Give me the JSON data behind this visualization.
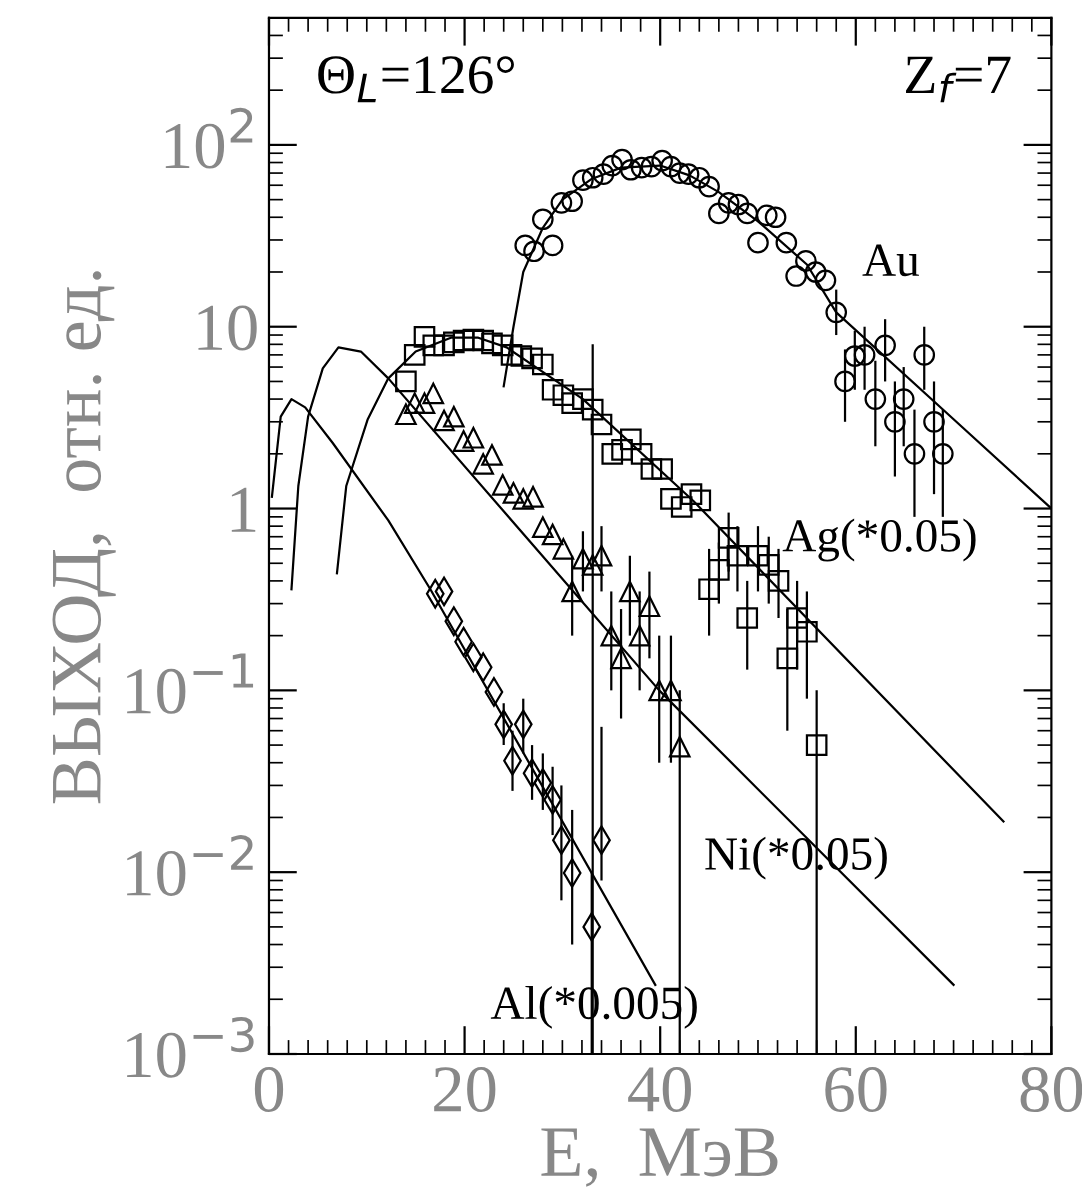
{
  "chart_data": {
    "type": "scatter",
    "xlabel": "E,  МэВ",
    "ylabel": "ВЫХОД,  отн. ед.",
    "log": "y",
    "grid": false,
    "xlim": [
      0,
      80
    ],
    "xticks": [
      0,
      20,
      40,
      60,
      80
    ],
    "ylim": [
      0.001,
      500
    ],
    "yticks": [
      {
        "value": 0.001,
        "label": "10$^{−3}$"
      },
      {
        "value": 0.01,
        "label": "10$^{−2}$"
      },
      {
        "value": 0.1,
        "label": "10$^{−1}$"
      },
      1,
      10,
      {
        "value": 100,
        "label": "10$^{2}$"
      }
    ],
    "annotations": [
      "Θ$_{L}$=126°",
      "Z$_{f}$=7"
    ],
    "series": [
      {
        "name": "Au",
        "marker": "circle",
        "color": "#000000",
        "x": [
          26.2,
          27.1,
          28.0,
          29.0,
          29.9,
          31.0,
          32.1,
          33.1,
          34.2,
          35.1,
          36.1,
          37.0,
          38.1,
          39.1,
          40.2,
          41.1,
          42.0,
          42.9,
          44.0,
          45.0,
          46.0,
          47.0,
          48.0,
          48.9,
          50.0,
          50.9,
          51.8,
          52.9,
          53.9,
          54.9,
          55.9,
          56.9,
          58.0,
          58.9,
          59.9,
          60.9,
          62.0,
          63.0,
          64.0,
          64.9,
          66.0,
          67.0,
          68.0,
          68.9
        ],
        "values": [
          28,
          26,
          39,
          28,
          48,
          49,
          64,
          66,
          69,
          77,
          83,
          73,
          75,
          76,
          82,
          76,
          70,
          69,
          66,
          59,
          42,
          48,
          47,
          42,
          29,
          41,
          40,
          29,
          19,
          23,
          20,
          18,
          12,
          5.0,
          6.9,
          7.0,
          4.0,
          7.9,
          3.0,
          4.0,
          2.0,
          7.0,
          3.0,
          2.0
        ],
        "errors": [
          null,
          null,
          null,
          null,
          null,
          null,
          null,
          null,
          null,
          null,
          null,
          null,
          null,
          null,
          null,
          null,
          null,
          null,
          null,
          null,
          null,
          null,
          null,
          null,
          null,
          null,
          null,
          null,
          null,
          null,
          null,
          null,
          [
            9,
            16
          ],
          [
            3.0,
            7.5
          ],
          [
            4.5,
            9.5
          ],
          [
            4.5,
            10
          ],
          [
            2.2,
            6.5
          ],
          [
            5,
            11
          ],
          [
            1.5,
            5
          ],
          [
            2.2,
            6
          ],
          [
            0.9,
            3.5
          ],
          [
            4.5,
            10
          ],
          [
            1.2,
            5
          ],
          [
            0.9,
            3.5
          ]
        ]
      },
      {
        "name": "Ag(*0.05)",
        "marker": "square",
        "color": "#000000",
        "x": [
          14.0,
          14.9,
          15.9,
          16.8,
          17.9,
          18.9,
          19.9,
          20.9,
          21.9,
          22.8,
          23.9,
          24.8,
          25.8,
          26.9,
          28.0,
          29.0,
          30.1,
          31.0,
          32.1,
          33.1,
          34.0,
          35.1,
          36.1,
          37.0,
          38.1,
          39.1,
          40.2,
          41.1,
          42.2,
          43.2,
          44.1,
          45.0,
          46.0,
          47.0,
          47.9,
          48.9,
          50.0,
          51.1,
          52.1,
          53.0,
          54.0,
          55.0,
          56.0
        ],
        "values": [
          5.0,
          7.0,
          8.8,
          7.9,
          7.9,
          8.2,
          8.4,
          8.5,
          8.4,
          8.1,
          7.9,
          7.0,
          6.9,
          6.7,
          6.2,
          4.5,
          4.2,
          3.8,
          4.0,
          3.5,
          2.9,
          2.0,
          2.1,
          2.4,
          2.0,
          1.65,
          1.65,
          1.13,
          1.02,
          1.2,
          1.11,
          0.36,
          0.46,
          0.69,
          0.55,
          0.25,
          0.55,
          0.49,
          0.4,
          0.15,
          0.25,
          0.21,
          0.05
        ],
        "errors": [
          null,
          null,
          null,
          null,
          null,
          null,
          null,
          null,
          null,
          null,
          null,
          null,
          null,
          null,
          null,
          null,
          null,
          null,
          null,
          null,
          null,
          null,
          null,
          null,
          null,
          null,
          null,
          null,
          null,
          null,
          null,
          [
            0.2,
            0.6
          ],
          [
            0.3,
            0.65
          ],
          [
            0.45,
            0.95
          ],
          [
            0.35,
            0.8
          ],
          [
            0.13,
            0.4
          ],
          [
            0.35,
            0.8
          ],
          [
            0.3,
            0.7
          ],
          [
            0.25,
            0.6
          ],
          [
            0.06,
            0.28
          ],
          [
            0.13,
            0.4
          ],
          [
            0.09,
            0.35
          ],
          [
            0.001,
            0.1
          ]
        ]
      },
      {
        "name": "Ni(*0.05)",
        "marker": "triangle",
        "color": "#000000",
        "x": [
          14.0,
          14.9,
          15.9,
          16.8,
          17.9,
          18.9,
          19.9,
          20.9,
          21.9,
          22.8,
          23.9,
          25.0,
          26.0,
          27.0,
          28.0,
          29.0,
          30.1,
          31.0,
          32.1,
          33.1,
          34.0,
          35.0,
          36.0,
          36.9,
          37.9,
          38.9,
          39.9,
          41.1,
          42.0
        ],
        "values": [
          3.3,
          3.8,
          3.8,
          4.3,
          3.05,
          3.2,
          2.35,
          2.45,
          1.76,
          1.97,
          1.35,
          1.22,
          1.13,
          1.16,
          0.79,
          0.72,
          0.6,
          0.35,
          0.53,
          0.49,
          0.55,
          0.2,
          0.15,
          0.35,
          0.2,
          0.29,
          0.1,
          0.1,
          0.049
        ],
        "errors": [
          null,
          null,
          null,
          null,
          null,
          null,
          null,
          null,
          null,
          null,
          null,
          null,
          null,
          null,
          null,
          null,
          null,
          [
            0.2,
            0.55
          ],
          [
            0.35,
            0.75
          ],
          [
            0.001,
            8
          ],
          [
            0.35,
            0.8
          ],
          [
            0.1,
            0.35
          ],
          [
            0.07,
            0.28
          ],
          [
            0.2,
            0.55
          ],
          [
            0.1,
            0.35
          ],
          [
            0.15,
            0.45
          ],
          [
            0.04,
            0.2
          ],
          [
            0.04,
            0.2
          ],
          [
            0.001,
            0.1
          ]
        ]
      },
      {
        "name": "Al(*0.005)",
        "marker": "diamond",
        "color": "#000000",
        "x": [
          17.0,
          17.9,
          18.9,
          19.9,
          20.9,
          21.9,
          23.0,
          24.0,
          24.9,
          26.0,
          26.9,
          28.0,
          29.0,
          29.9,
          31.0,
          33.0,
          34.0
        ],
        "values": [
          0.34,
          0.35,
          0.24,
          0.185,
          0.152,
          0.134,
          0.098,
          0.065,
          0.041,
          0.065,
          0.035,
          0.031,
          0.025,
          0.015,
          0.0099,
          0.005,
          0.015
        ],
        "errors": [
          null,
          null,
          null,
          null,
          null,
          null,
          null,
          [
            0.05,
            0.085
          ],
          [
            0.028,
            0.06
          ],
          [
            0.045,
            0.09
          ],
          [
            0.025,
            0.05
          ],
          [
            0.022,
            0.045
          ],
          [
            0.016,
            0.038
          ],
          [
            0.007,
            0.03
          ],
          [
            0.004,
            0.022
          ],
          [
            0.001,
            0.01
          ],
          [
            0.009,
            0.063
          ]
        ]
      },
      {
        "type": "line",
        "color": "#000000",
        "x": [
          24.0,
          25,
          26,
          28,
          30,
          33,
          36,
          40,
          43,
          46,
          50,
          55,
          58,
          70,
          80
        ],
        "values": [
          4.7,
          10,
          20,
          35,
          50,
          65,
          75,
          77,
          68,
          55,
          38,
          22,
          12,
          3.1,
          1.0
        ]
      },
      {
        "type": "line",
        "color": "#000000",
        "x": [
          6.95,
          7.9,
          10.1,
          12.2,
          15,
          18.6,
          21.4,
          24.3,
          32.1,
          43.4,
          75.1
        ],
        "values": [
          0.44,
          1.33,
          3.1,
          5.2,
          7.3,
          8.7,
          8.7,
          7.7,
          4.0,
          1.1,
          0.019
        ]
      },
      {
        "type": "line",
        "color": "#000000",
        "x": [
          2.3,
          3.0,
          4.0,
          5.5,
          7.1,
          9.4,
          12.2,
          39.9,
          70.0
        ],
        "values": [
          0.36,
          1.33,
          3.2,
          5.9,
          7.7,
          7.3,
          5.2,
          0.1,
          0.0024
        ]
      },
      {
        "type": "line",
        "color": "#000000",
        "x": [
          0.3,
          1.2,
          2.3,
          3.7,
          6.5,
          12.2,
          16.5,
          39.5
        ],
        "values": [
          1.16,
          3.2,
          4.0,
          3.6,
          2.3,
          0.86,
          0.36,
          0.0024
        ]
      }
    ]
  }
}
